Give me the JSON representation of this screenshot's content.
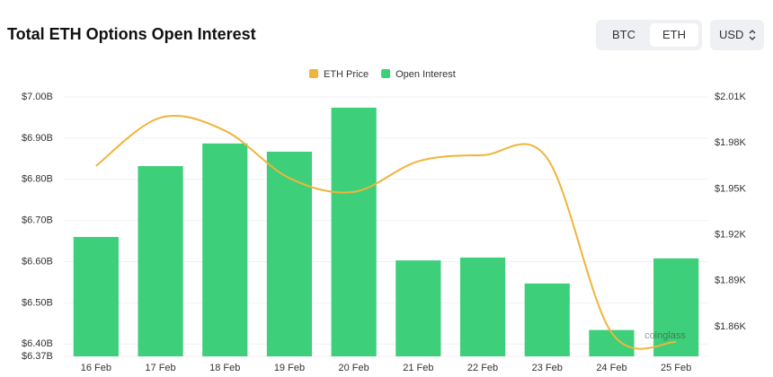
{
  "ui": {
    "buttons": [
      "BTC",
      "ETH"
    ],
    "selected": "ETH",
    "currency": "USD",
    "watermark": "coinglass"
  },
  "chart_data": {
    "type": "bar-line",
    "title": "Total ETH Options Open Interest",
    "categories": [
      "16 Feb",
      "17 Feb",
      "18 Feb",
      "19 Feb",
      "20 Feb",
      "21 Feb",
      "22 Feb",
      "23 Feb",
      "24 Feb",
      "25 Feb"
    ],
    "series": [
      {
        "name": "ETH Price",
        "type": "line",
        "axis": "y2",
        "color": "#f0b43c",
        "values": [
          1.965,
          1.9965,
          1.988,
          1.957,
          1.948,
          1.968,
          1.972,
          1.97,
          1.856,
          1.85
        ]
      },
      {
        "name": "Open Interest",
        "type": "bar",
        "color": "#3ecf7a",
        "values": [
          6.66,
          6.832,
          6.887,
          6.867,
          6.974,
          6.603,
          6.61,
          6.547,
          6.434,
          6.608
        ]
      }
    ],
    "ylim": [
      6.37,
      7.0
    ],
    "yticks": [
      {
        "value": 6.37,
        "label": "$6.37B"
      },
      {
        "value": 6.4,
        "label": "$6.40B"
      },
      {
        "value": 6.5,
        "label": "$6.50B"
      },
      {
        "value": 6.6,
        "label": "$6.60B"
      },
      {
        "value": 6.7,
        "label": "$6.70B"
      },
      {
        "value": 6.8,
        "label": "$6.80B"
      },
      {
        "value": 6.9,
        "label": "$6.90B"
      },
      {
        "value": 7.0,
        "label": "$7.00B"
      }
    ],
    "y2lim": [
      1.8406,
      2.01
    ],
    "y2ticks": [
      {
        "value": 1.86,
        "label": "$1.86K"
      },
      {
        "value": 1.89,
        "label": "$1.89K"
      },
      {
        "value": 1.92,
        "label": "$1.92K"
      },
      {
        "value": 1.95,
        "label": "$1.95K"
      },
      {
        "value": 1.98,
        "label": "$1.98K"
      },
      {
        "value": 2.01,
        "label": "$2.01K"
      }
    ],
    "grid": true
  }
}
